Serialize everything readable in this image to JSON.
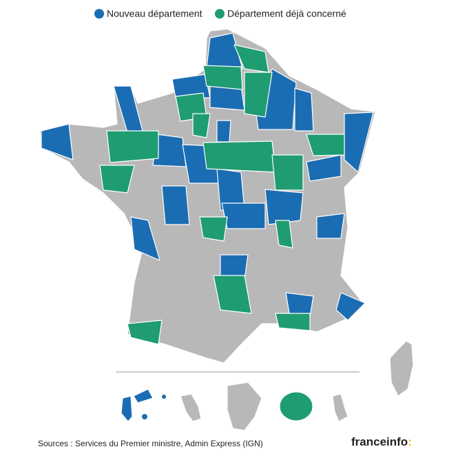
{
  "legend": [
    {
      "label": "Nouveau département",
      "color": "#1b6db3"
    },
    {
      "label": "Département déjà concerné",
      "color": "#1f9c72"
    }
  ],
  "land_color": "#b8b8b8",
  "source": "Sources : Services du Premier ministre, Admin Express (IGN)",
  "logo": {
    "name": "franceinfo",
    "mark": ":",
    "mark_color": "#f2b300"
  }
}
